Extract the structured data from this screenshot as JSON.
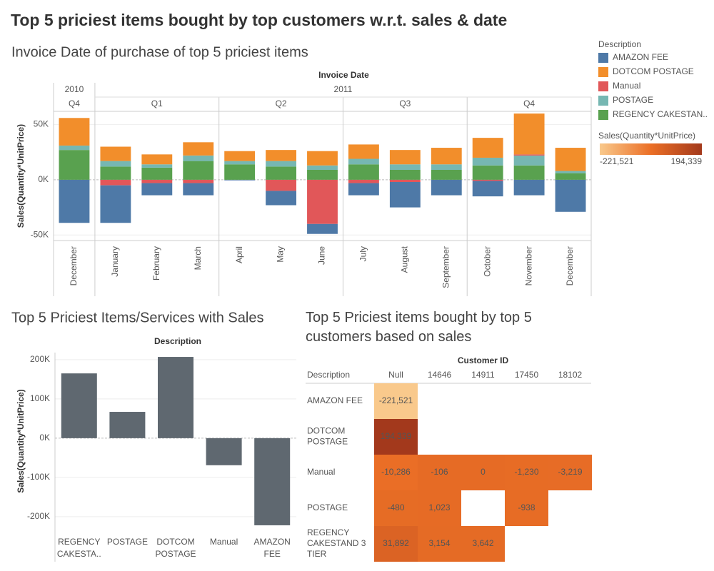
{
  "title": "Top 5 priciest items bought by top customers w.r.t. sales & date",
  "chart_data": [
    {
      "type": "bar",
      "stacked": true,
      "title": "Invoice Date of purchase of top 5 priciest items",
      "x_title": "Invoice Date",
      "y_title": "Sales(Quantity*UnitPrice)",
      "year_headers": [
        "2010",
        "2011"
      ],
      "quarter_headers": [
        "Q4",
        "Q1",
        "Q2",
        "Q3",
        "Q4"
      ],
      "categories": [
        "December",
        "January",
        "February",
        "March",
        "April",
        "May",
        "June",
        "July",
        "August",
        "September",
        "October",
        "November",
        "December"
      ],
      "legend_title": "Description",
      "legend": "right",
      "grid": true,
      "series": [
        {
          "name": "AMAZON FEE",
          "color": "#4e79a7",
          "values": [
            -39000,
            -34000,
            -11000,
            -11000,
            -500,
            -13000,
            -9000,
            -11000,
            -23000,
            -14000,
            -14000,
            -14000,
            -29000
          ]
        },
        {
          "name": "DOTCOM POSTAGE",
          "color": "#f28e2b",
          "values": [
            25000,
            13000,
            9000,
            12000,
            9000,
            10000,
            13000,
            13000,
            13000,
            15000,
            18000,
            37000,
            21000
          ]
        },
        {
          "name": "Manual",
          "color": "#e15759",
          "values": [
            0,
            -5000,
            -3000,
            -3000,
            0,
            -10000,
            -40000,
            -3000,
            -2000,
            0,
            -1000,
            1000,
            0
          ]
        },
        {
          "name": "POSTAGE",
          "color": "#76b7b2",
          "values": [
            4000,
            5000,
            3000,
            5000,
            3000,
            5000,
            4000,
            5000,
            5000,
            5000,
            7000,
            9000,
            2000
          ]
        },
        {
          "name": "REGENCY CAKESTAN..",
          "color": "#59a14f",
          "values": [
            27000,
            12000,
            11000,
            17000,
            14000,
            12000,
            9000,
            14000,
            9000,
            9000,
            13000,
            13000,
            6000
          ]
        }
      ],
      "ylim": [
        -55000,
        62000
      ],
      "yticks": [
        {
          "value": 50000,
          "label": "50K"
        },
        {
          "value": 0,
          "label": "0K"
        },
        {
          "value": -50000,
          "label": "-50K"
        }
      ]
    },
    {
      "type": "bar",
      "title": "Top 5 Priciest Items/Services with Sales",
      "x_title": "Description",
      "y_title": "Sales(Quantity*UnitPrice)",
      "categories": [
        "REGENCY CAKESTA..",
        "POSTAGE",
        "DOTCOM POSTAGE",
        "Manual",
        "AMAZON FEE"
      ],
      "values": [
        165000,
        67000,
        207000,
        -69000,
        -222000
      ],
      "color": "#5f6870",
      "grid": true,
      "ylim": [
        -233000,
        218000
      ],
      "yticks": [
        {
          "value": 200000,
          "label": "200K"
        },
        {
          "value": 100000,
          "label": "100K"
        },
        {
          "value": 0,
          "label": "0K"
        },
        {
          "value": -100000,
          "label": "-100K"
        },
        {
          "value": -200000,
          "label": "-200K"
        }
      ]
    },
    {
      "type": "heatmap",
      "title": "Top 5 Priciest items bought by top 5 customers based on sales",
      "row_title": "Description",
      "column_title": "Customer ID",
      "columns": [
        "Null",
        "14646",
        "14911",
        "17450",
        "18102"
      ],
      "rows": [
        "AMAZON FEE",
        "DOTCOM POSTAGE",
        "Manual",
        "POSTAGE",
        "REGENCY CAKESTAND 3 TIER"
      ],
      "values": [
        [
          -221521,
          null,
          null,
          null,
          null
        ],
        [
          194339,
          null,
          null,
          null,
          null
        ],
        [
          -10286,
          -106,
          0,
          -1230,
          -3219
        ],
        [
          -480,
          1023,
          null,
          -938,
          null
        ],
        [
          31892,
          3154,
          3642,
          null,
          null
        ]
      ],
      "value_labels": [
        [
          "-221,521",
          null,
          null,
          null,
          null
        ],
        [
          "194,339",
          null,
          null,
          null,
          null
        ],
        [
          "-10,286",
          "-106",
          "0",
          "-1,230",
          "-3,219"
        ],
        [
          "-480",
          "1,023",
          null,
          "-938",
          null
        ],
        [
          "31,892",
          "3,154",
          "3,642",
          null,
          null
        ]
      ],
      "legend_title": "Sales(Quantity*UnitPrice)",
      "color_range": [
        {
          "value": -221521,
          "label": "-221,521"
        },
        {
          "value": 194339,
          "label": "194,339"
        }
      ],
      "colors": [
        "#f9c98c",
        "#eb6f26",
        "#a3391c"
      ]
    }
  ]
}
